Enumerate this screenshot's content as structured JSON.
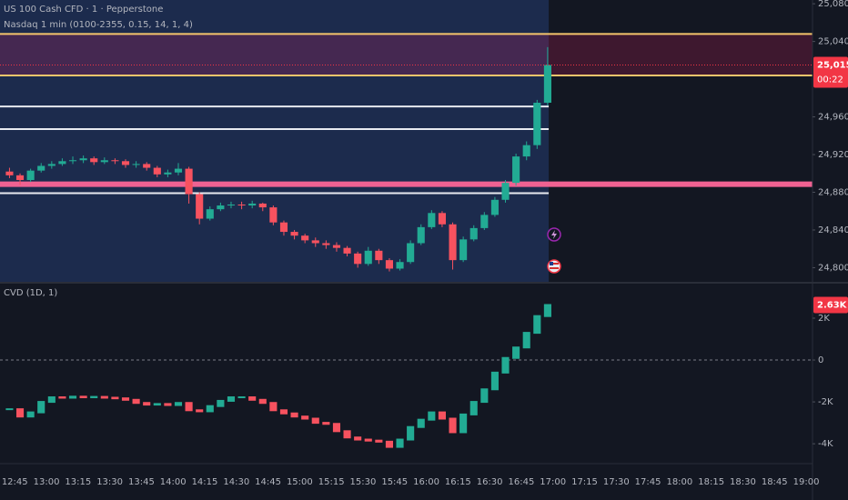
{
  "chart_data": [
    {
      "type": "candlestick",
      "title": "US 100 Cash CFD · 1 · Pepperstone",
      "subtitle": "Nasdaq 1 min (0100-2355, 0.15, 14, 1, 4)",
      "x": [
        "12:40",
        "12:45",
        "12:50",
        "12:55",
        "13:00",
        "13:05",
        "13:10",
        "13:15",
        "13:20",
        "13:25",
        "13:30",
        "13:35",
        "13:40",
        "13:45",
        "13:50",
        "13:55",
        "14:00",
        "14:05",
        "14:10",
        "14:15",
        "14:20",
        "14:25",
        "14:30",
        "14:35",
        "14:40",
        "14:45",
        "14:50",
        "14:55",
        "15:00",
        "15:05",
        "15:10",
        "15:15",
        "15:20",
        "15:25",
        "15:30",
        "15:35",
        "15:40",
        "15:45",
        "15:50",
        "15:55",
        "16:00",
        "16:05",
        "16:10",
        "16:15",
        "16:20",
        "16:25",
        "16:30",
        "16:35",
        "16:40",
        "16:45",
        "16:50",
        "16:55"
      ],
      "open": [
        24902,
        24898,
        24893,
        24903,
        24908,
        24910,
        24913,
        24914,
        24916,
        24912,
        24914,
        24913,
        24909,
        24910,
        24906,
        24899,
        24901,
        24905,
        24878,
        24852,
        24862,
        24866,
        24867,
        24866,
        24868,
        24864,
        24848,
        24838,
        24834,
        24829,
        24826,
        24824,
        24821,
        24815,
        24804,
        24818,
        24808,
        24799,
        24806,
        24826,
        24843,
        24858,
        24846,
        24808,
        24830,
        24842,
        24856,
        24872,
        24890,
        24918,
        24930,
        24975
      ],
      "high": [
        24906,
        24900,
        24905,
        24911,
        24913,
        24916,
        24918,
        24919,
        24918,
        24917,
        24916,
        24915,
        24913,
        24912,
        24908,
        24904,
        24911,
        24907,
        24880,
        24865,
        24869,
        24870,
        24870,
        24871,
        24869,
        24866,
        24850,
        24840,
        24836,
        24832,
        24829,
        24827,
        24823,
        24817,
        24822,
        24820,
        24810,
        24809,
        24829,
        24846,
        24861,
        24860,
        24848,
        24833,
        24845,
        24859,
        24875,
        24893,
        24921,
        24934,
        24978,
        25034
      ],
      "low": [
        24895,
        24888,
        24891,
        24901,
        24905,
        24908,
        24910,
        24911,
        24909,
        24910,
        24910,
        24906,
        24906,
        24903,
        24896,
        24896,
        24898,
        24868,
        24846,
        24850,
        24860,
        24863,
        24862,
        24863,
        24860,
        24845,
        24834,
        24830,
        24826,
        24822,
        24820,
        24817,
        24812,
        24800,
        24802,
        24804,
        24796,
        24797,
        24804,
        24824,
        24841,
        24843,
        24798,
        24806,
        24828,
        24840,
        24854,
        24869,
        24887,
        24914,
        24926,
        24972
      ],
      "close": [
        24898,
        24893,
        24903,
        24908,
        24910,
        24913,
        24914,
        24916,
        24912,
        24914,
        24913,
        24909,
        24910,
        24906,
        24899,
        24901,
        24905,
        24878,
        24852,
        24862,
        24866,
        24867,
        24866,
        24868,
        24864,
        24848,
        24838,
        24834,
        24829,
        24826,
        24824,
        24821,
        24815,
        24804,
        24818,
        24808,
        24799,
        24806,
        24826,
        24843,
        24858,
        24846,
        24808,
        24830,
        24842,
        24856,
        24872,
        24890,
        24918,
        24930,
        24975,
        25015
      ],
      "up_color": "#22ab94",
      "down_color": "#f7525f",
      "xlim": [
        "12:38",
        "19:03"
      ],
      "ylim": [
        24785,
        25084
      ],
      "yticks": [
        {
          "value": 25080,
          "label": "25,080.0"
        },
        {
          "value": 25040,
          "label": "25,040.0"
        },
        {
          "value": 24960,
          "label": "24,960.0"
        },
        {
          "value": 24920,
          "label": "24,920.0"
        },
        {
          "value": 24880,
          "label": "24,880.0"
        },
        {
          "value": 24840,
          "label": "24,840.0"
        },
        {
          "value": 24800,
          "label": "24,800.0"
        }
      ],
      "session_shade": {
        "until": "16:58",
        "color": "#1c2b4d"
      },
      "zone": {
        "from": 25004,
        "to": 25048,
        "color": "#e91e63"
      },
      "levels": [
        {
          "value": 25048,
          "color": "#f5c56b"
        },
        {
          "value": 25004,
          "color": "#f5c56b"
        },
        {
          "value": 24971,
          "color": "#e8eaf0",
          "end": "16:58"
        },
        {
          "value": 24947,
          "color": "#e8eaf0",
          "end": "16:58"
        },
        {
          "value": 24888.6,
          "color": "#f06292",
          "width": 6
        },
        {
          "value": 24879,
          "color": "#e8eaf0",
          "end": "16:58"
        }
      ],
      "last": 25015,
      "last_label": "25,015.0",
      "countdown": "00:22",
      "last_color": "#f23645"
    },
    {
      "type": "candlestick-line",
      "title": "CVD (1D, 1)",
      "x": [
        "12:40",
        "12:45",
        "12:50",
        "12:55",
        "13:00",
        "13:05",
        "13:10",
        "13:15",
        "13:20",
        "13:25",
        "13:30",
        "13:35",
        "13:40",
        "13:45",
        "13:50",
        "13:55",
        "14:00",
        "14:05",
        "14:10",
        "14:15",
        "14:20",
        "14:25",
        "14:30",
        "14:35",
        "14:40",
        "14:45",
        "14:50",
        "14:55",
        "15:00",
        "15:05",
        "15:10",
        "15:15",
        "15:20",
        "15:25",
        "15:30",
        "15:35",
        "15:40",
        "15:45",
        "15:50",
        "15:55",
        "16:00",
        "16:05",
        "16:10",
        "16:15",
        "16:20",
        "16:25",
        "16:30",
        "16:35",
        "16:40",
        "16:45",
        "16:50",
        "16:55"
      ],
      "values": [
        -2350,
        -2700,
        -2500,
        -2000,
        -1780,
        -1800,
        -1750,
        -1780,
        -1760,
        -1800,
        -1830,
        -1900,
        -2050,
        -2130,
        -2100,
        -2150,
        -2050,
        -2400,
        -2450,
        -2200,
        -1950,
        -1780,
        -1780,
        -1900,
        -2050,
        -2400,
        -2550,
        -2700,
        -2800,
        -3000,
        -3050,
        -3400,
        -3700,
        -3800,
        -3850,
        -3900,
        -4150,
        -3800,
        -3200,
        -2850,
        -2500,
        -2800,
        -3450,
        -2600,
        -2000,
        -1400,
        -600,
        100,
        600,
        1300,
        2100,
        2630
      ],
      "up_color": "#22ab94",
      "down_color": "#f7525f",
      "xlim": [
        "12:38",
        "19:03"
      ],
      "ylim": [
        -4950,
        3650
      ],
      "yticks": [
        {
          "value": 2000,
          "label": "2K"
        },
        0,
        {
          "value": -2000,
          "label": "-2K"
        },
        {
          "value": -4000,
          "label": "-4K"
        }
      ],
      "xticks": [
        "12:45",
        "13:00",
        "13:15",
        "13:30",
        "13:45",
        "14:00",
        "14:15",
        "14:30",
        "14:45",
        "15:00",
        "15:15",
        "15:30",
        "15:45",
        "16:00",
        "16:15",
        "16:30",
        "16:45",
        "17:00",
        "17:15",
        "17:30",
        "17:45",
        "18:00",
        "18:15",
        "18:30",
        "18:45",
        "19:00"
      ],
      "last": 2630,
      "last_label": "2.63K",
      "last_color": "#f23645"
    }
  ]
}
